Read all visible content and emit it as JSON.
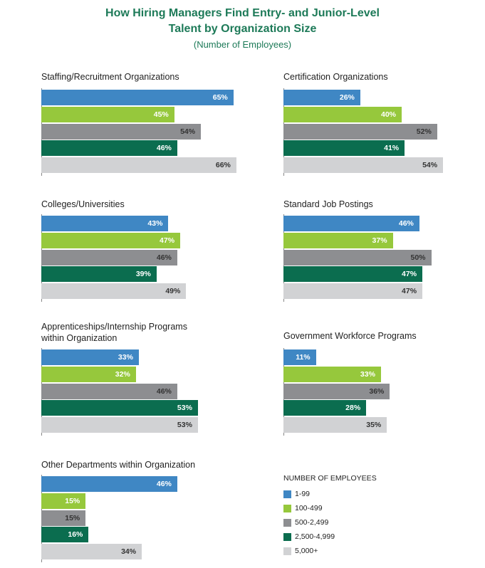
{
  "chart_data": {
    "type": "bar",
    "title": "How Hiring Managers Find Entry- and Junior-Level Talent by Organization Size",
    "title_lines": [
      "How Hiring Managers Find Entry- and Junior-Level",
      "Talent by Organization Size"
    ],
    "subtitle": "(Number of Employees)",
    "orientation": "horizontal",
    "series": [
      {
        "name": "1-99",
        "color": "#3f87c4"
      },
      {
        "name": "100-499",
        "color": "#96c83c"
      },
      {
        "name": "500-2,499",
        "color": "#8d8e91"
      },
      {
        "name": "2,500-4,999",
        "color": "#0b6d4f"
      },
      {
        "name": "5,000+",
        "color": "#d1d2d4"
      }
    ],
    "panels": [
      {
        "title": [
          "Staffing/Recruitment Organizations"
        ],
        "values": [
          65,
          45,
          54,
          46,
          66
        ]
      },
      {
        "title": [
          "Certification Organizations"
        ],
        "values": [
          26,
          40,
          52,
          41,
          54
        ]
      },
      {
        "title": [
          "Colleges/Universities"
        ],
        "values": [
          43,
          47,
          46,
          39,
          49
        ]
      },
      {
        "title": [
          "Standard Job Postings"
        ],
        "values": [
          46,
          37,
          50,
          47,
          47
        ]
      },
      {
        "title": [
          "Apprenticeships/Internship Programs",
          "within Organization"
        ],
        "values": [
          33,
          32,
          46,
          53,
          53
        ]
      },
      {
        "title": [
          "Government Workforce Programs"
        ],
        "values": [
          11,
          33,
          36,
          28,
          35
        ]
      },
      {
        "title": [
          "Other Departments within Organization"
        ],
        "values": [
          46,
          15,
          15,
          16,
          34
        ]
      }
    ],
    "value_suffix": "%",
    "legend": {
      "title": "NUMBER OF EMPLOYEES",
      "position": "bottom-right"
    }
  }
}
